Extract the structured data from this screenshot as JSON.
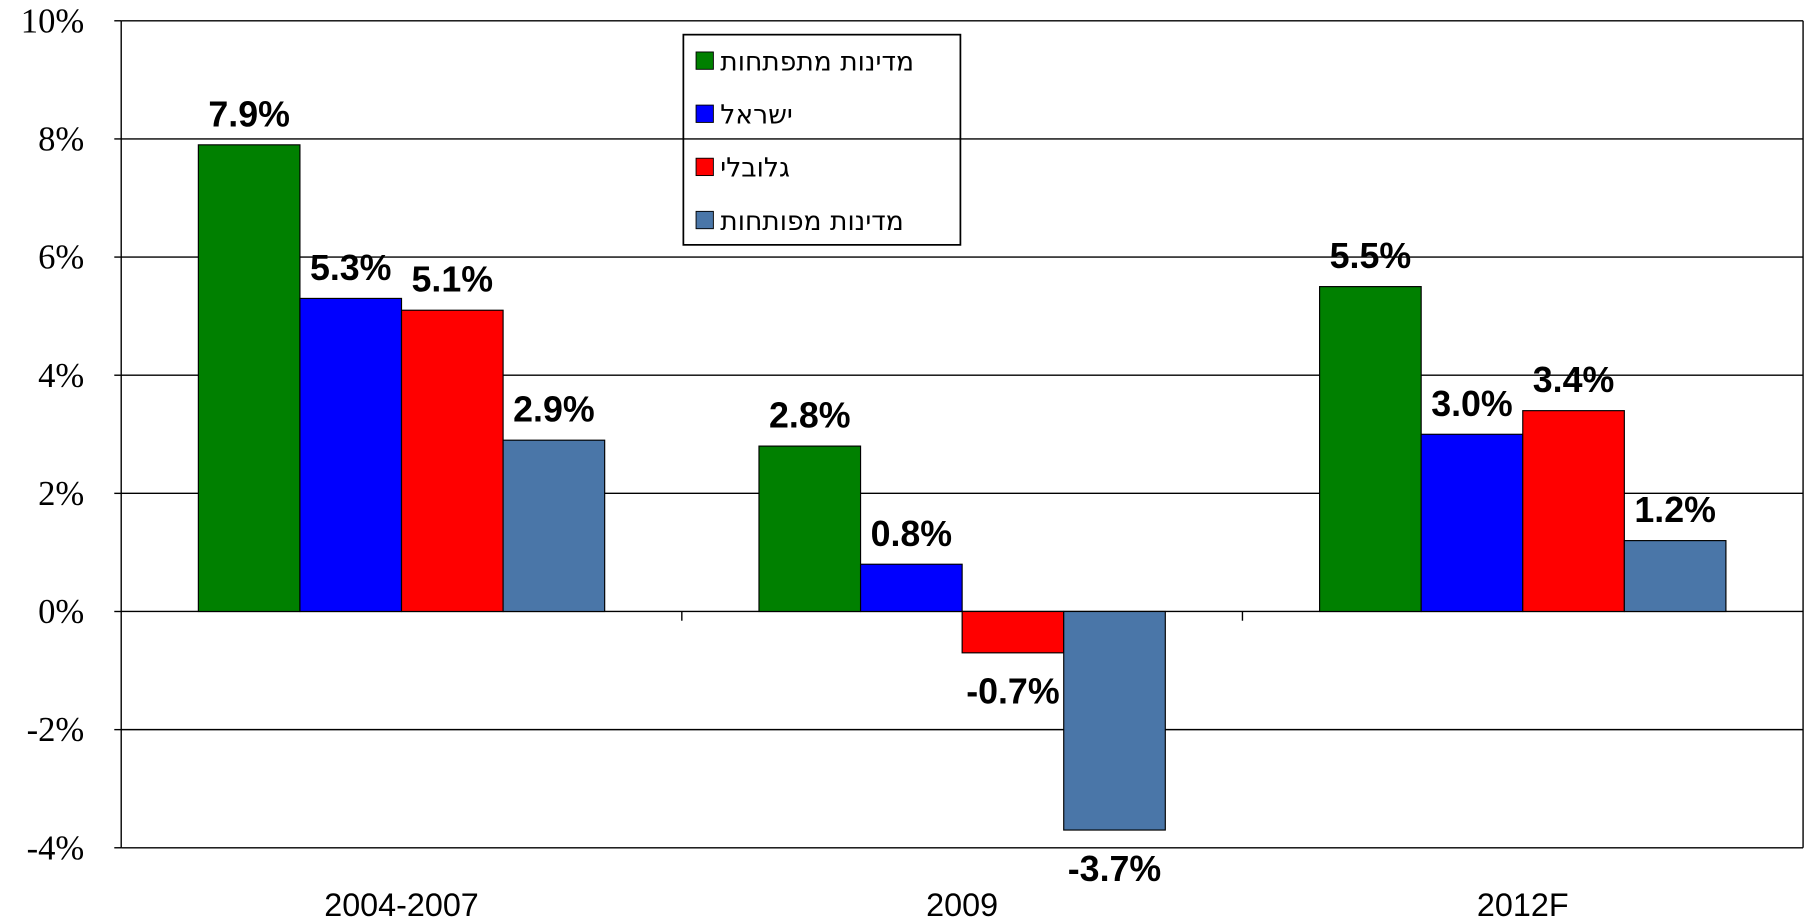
{
  "chart_data": {
    "type": "bar",
    "categories": [
      "2004-2007",
      "2009",
      "2012F"
    ],
    "series": [
      {
        "name": "מדינות מתפתחות",
        "color": "#008000",
        "values": [
          7.9,
          2.8,
          5.5
        ],
        "value_labels": [
          "7.9%",
          "2.8%",
          "5.5%"
        ]
      },
      {
        "name": "ישראל",
        "color": "#0000ff",
        "values": [
          5.3,
          0.8,
          3.0
        ],
        "value_labels": [
          "5.3%",
          "0.8%",
          "3.0%"
        ]
      },
      {
        "name": "גלובלי",
        "color": "#ff0000",
        "values": [
          5.1,
          -0.7,
          3.4
        ],
        "value_labels": [
          "5.1%",
          "-0.7%",
          "3.4%"
        ]
      },
      {
        "name": "מדינות מפותחות",
        "color": "#4a76a8",
        "values": [
          2.9,
          -3.7,
          1.2
        ],
        "value_labels": [
          "2.9%",
          "-3.7%",
          "1.2%"
        ]
      }
    ],
    "ylim": [
      -4,
      10
    ],
    "yticks": [
      {
        "value": -4,
        "label": "-4%"
      },
      {
        "value": -2,
        "label": "-2%"
      },
      {
        "value": 0,
        "label": "0%"
      },
      {
        "value": 2,
        "label": "2%"
      },
      {
        "value": 4,
        "label": "4%"
      },
      {
        "value": 6,
        "label": "6%"
      },
      {
        "value": 8,
        "label": "8%"
      },
      {
        "value": 10,
        "label": "10%"
      }
    ],
    "grid": true,
    "legend": "top"
  }
}
